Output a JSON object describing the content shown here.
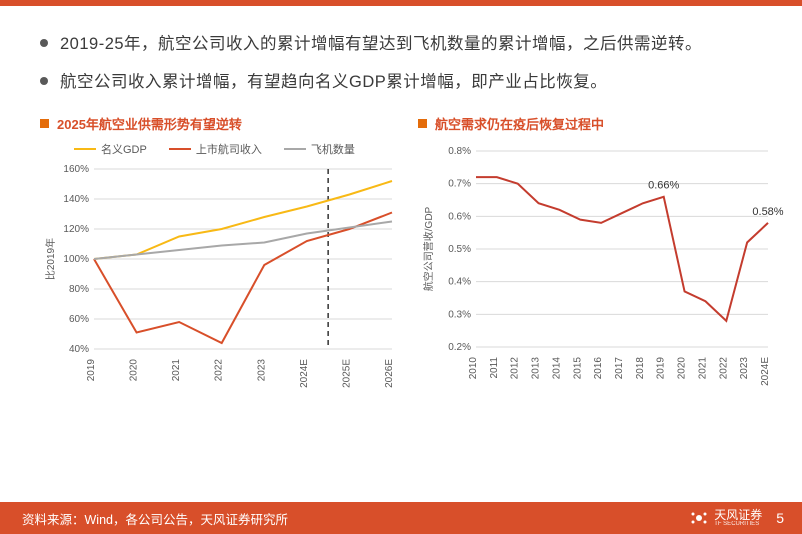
{
  "bullets": [
    "2019-25年，航空公司收入的累计增幅有望达到飞机数量的累计增幅，之后供需逆转。",
    "航空公司收入累计增幅，有望趋向名义GDP累计增幅，即产业占比恢复。"
  ],
  "chart_left": {
    "title": "2025年航空业供需形势有望逆转",
    "type": "line",
    "ylabel": "比2019年",
    "legend": [
      {
        "label": "名义GDP",
        "color": "#f8b915"
      },
      {
        "label": "上市航司收入",
        "color": "#d84f2a"
      },
      {
        "label": "飞机数量",
        "color": "#a8a8a8"
      }
    ],
    "x_categories": [
      "2019",
      "2020",
      "2021",
      "2022",
      "2023",
      "2024E",
      "2025E",
      "2026E"
    ],
    "ylim": [
      40,
      160
    ],
    "ytick_step": 20,
    "yticks": [
      40,
      60,
      80,
      100,
      120,
      140,
      160
    ],
    "ytick_labels": [
      "40%",
      "60%",
      "80%",
      "100%",
      "120%",
      "140%",
      "160%"
    ],
    "series": {
      "gdp": [
        100,
        103,
        115,
        120,
        128,
        135,
        143,
        152
      ],
      "revenue": [
        100,
        51,
        58,
        44,
        96,
        112,
        120,
        131
      ],
      "fleet": [
        100,
        103,
        106,
        109,
        111,
        117,
        121,
        125
      ]
    },
    "dashed_x_index": 6,
    "line_width": 2,
    "grid_color": "#d9d9d9",
    "background_color": "#ffffff",
    "axis_fontsize": 10,
    "title_fontsize": 13
  },
  "chart_right": {
    "title": "航空需求仍在疫后恢复过程中",
    "type": "line",
    "ylabel": "航空公司营收/GDP",
    "x_categories": [
      "2010",
      "2011",
      "2012",
      "2013",
      "2014",
      "2015",
      "2016",
      "2017",
      "2018",
      "2019",
      "2020",
      "2021",
      "2022",
      "2023",
      "2024E"
    ],
    "ylim": [
      0.2,
      0.8
    ],
    "ytick_step": 0.1,
    "yticks": [
      0.2,
      0.3,
      0.4,
      0.5,
      0.6,
      0.7,
      0.8
    ],
    "ytick_labels": [
      "0.2%",
      "0.3%",
      "0.4%",
      "0.5%",
      "0.6%",
      "0.7%",
      "0.8%"
    ],
    "series": {
      "ratio": [
        0.72,
        0.72,
        0.7,
        0.64,
        0.62,
        0.59,
        0.58,
        0.61,
        0.64,
        0.66,
        0.37,
        0.34,
        0.28,
        0.52,
        0.58
      ]
    },
    "annotations": [
      {
        "x_index": 9,
        "value": 0.66,
        "text": "0.66%"
      },
      {
        "x_index": 14,
        "value": 0.58,
        "text": "0.58%"
      }
    ],
    "line_color": "#c43c2e",
    "line_width": 2,
    "grid_color": "#d9d9d9",
    "background_color": "#ffffff",
    "axis_fontsize": 10,
    "title_fontsize": 13
  },
  "footer": {
    "left": "资料来源：Wind，各公司公告，天风证券研究所",
    "logo_text": "天风证券",
    "logo_sub": "TF SECURITIES",
    "page": "5"
  },
  "colors": {
    "brand": "#d84f2a",
    "accent": "#e46c0a",
    "text": "#3a3a3a"
  }
}
